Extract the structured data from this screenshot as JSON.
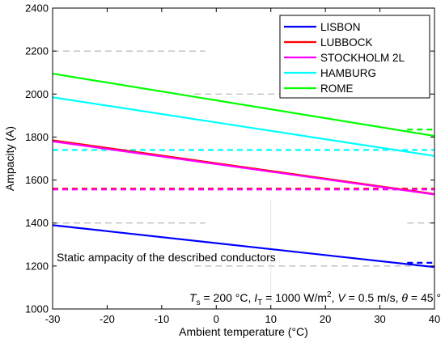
{
  "chart_data": {
    "type": "line",
    "xlabel": "Ambient temperature (°C)",
    "ylabel": "Ampacity (A)",
    "xlim": [
      -30,
      40
    ],
    "ylim": [
      1000,
      2400
    ],
    "xticks": [
      -30,
      -20,
      -10,
      0,
      10,
      20,
      30,
      40
    ],
    "yticks": [
      1000,
      1200,
      1400,
      1600,
      1800,
      2000,
      2200,
      2400
    ],
    "legend_position": "top-right",
    "series": [
      {
        "name": "LISBON",
        "color": "#0000ff",
        "x": [
          -30,
          40
        ],
        "y": [
          1390,
          1195
        ],
        "static": 1215
      },
      {
        "name": "LUBBOCK",
        "color": "#ff0000",
        "x": [
          -30,
          40
        ],
        "y": [
          1785,
          1535
        ],
        "static": 1560
      },
      {
        "name": "STOCKHOLM 2L",
        "color": "#ff00ff",
        "x": [
          -30,
          40
        ],
        "y": [
          1780,
          1533
        ],
        "static": 1556
      },
      {
        "name": "HAMBURG",
        "color": "#00ffff",
        "x": [
          -30,
          40
        ],
        "y": [
          1985,
          1712
        ],
        "static": 1740
      },
      {
        "name": "ROME",
        "color": "#00ff00",
        "x": [
          -30,
          40
        ],
        "y": [
          2095,
          1805
        ],
        "static": 1835
      }
    ],
    "static_annotation": "Static ampacity of the described conductors",
    "conditions": {
      "ts_symbol": "T",
      "ts_sub": "s",
      "ts_value": " = 200 °C, ",
      "it_symbol": "I",
      "it_sub": "T",
      "it_value": " = 1000 W/m",
      "it_sup": "2",
      "v_sep": ", ",
      "v_symbol": "V",
      "v_value": " = 0.5 m/s, ",
      "theta_symbol": "θ",
      "theta_value": " = 45 °"
    }
  }
}
